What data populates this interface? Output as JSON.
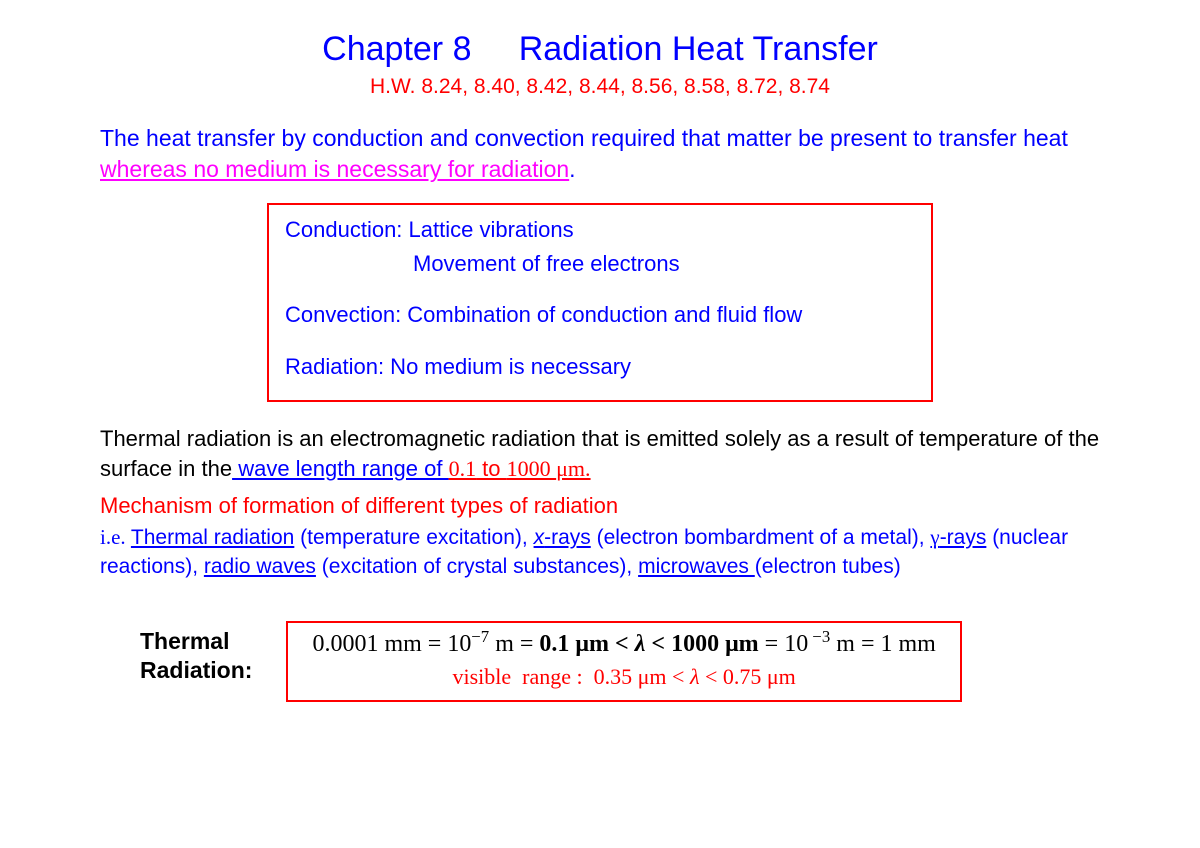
{
  "title": {
    "chapter": "Chapter 8",
    "name": "Radiation Heat Transfer"
  },
  "homework": "H.W.  8.24,  8.40,  8.42,  8.44,  8.56,  8.58,  8.72,  8.74",
  "intro": {
    "part1": "The heat transfer by conduction and convection required that matter be present to transfer heat ",
    "part2": "whereas no medium is necessary for radiation",
    "part3": "."
  },
  "box": {
    "conduction_label": "Conduction: ",
    "conduction_1": "Lattice vibrations",
    "conduction_2": "Movement of free electrons",
    "convection": "Convection:  Combination of conduction and fluid flow",
    "radiation": "Radiation: No medium is necessary"
  },
  "thermal_para": {
    "part1": "Thermal radiation is an electromagnetic radiation that is emitted solely as a result of temperature of the surface in the",
    "wave_prefix": " wave length range of ",
    "range_start": "0.1",
    "to": " to ",
    "range_end": "1000 ",
    "unit": "μm."
  },
  "mechanism": {
    "heading": "Mechanism of formation of different types of radiation",
    "ie": "i.e. ",
    "thermal": "Thermal radiation",
    "thermal_note": " (temperature excitation), ",
    "xrays": "x",
    "xrays_suffix": "-rays",
    "xrays_note": " (electron bombardment of a metal), ",
    "gamma": "γ",
    "gamma_suffix": "-rays",
    "gamma_note": " (nuclear reactions),  ",
    "radio": "radio waves",
    "radio_note": " (excitation of crystal substances), ",
    "micro": "microwaves ",
    "micro_note": "(electron tubes)"
  },
  "bottom": {
    "label1": "Thermal",
    "label2": "Radiation:",
    "eq": {
      "a": "0.0001",
      "mm": " mm ",
      "eq": "= ",
      "ten": "10",
      "exp_neg7": "−7",
      "m": " m ",
      "pt1": "= ",
      "pt1_bold": "0.1",
      "mu_m": " μm",
      "lt": " < ",
      "lambda": "λ",
      "lt2": " < ",
      "thousand": "1000",
      "mu_m2": " μm ",
      "eq2": "= ",
      "ten2": "10",
      "exp_neg3": " −3",
      "m2": " m ",
      "eq3": "= ",
      "one": "1",
      "mm2": " mm"
    },
    "visible": "visible  range :  0.35 μm < λ < 0.75 μm"
  },
  "colors": {
    "blue": "#0000ff",
    "red": "#ff0000",
    "magenta": "#ff00ff",
    "black": "#000000",
    "border_red": "#ff0000"
  }
}
